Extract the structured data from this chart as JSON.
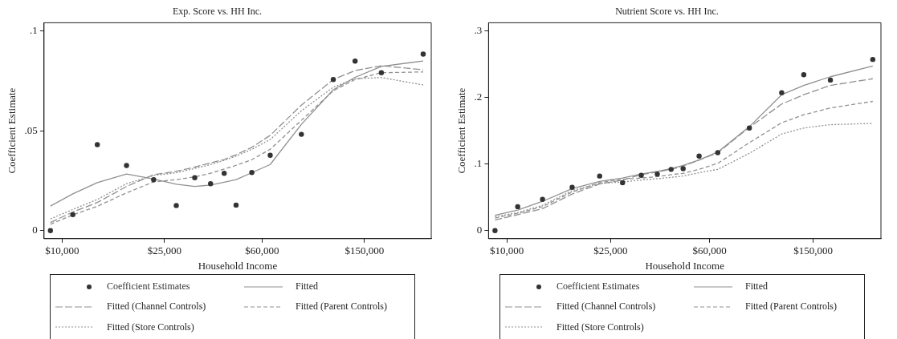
{
  "chart_data": [
    {
      "type": "scatter",
      "title": "Exp. Score vs. HH Inc.",
      "xlabel": "Household Income",
      "ylabel": "Coefficient Estimate",
      "log": "x",
      "grid": false,
      "legend": "bottom",
      "x": [
        9000,
        11000,
        13700,
        17800,
        22700,
        27800,
        32800,
        37800,
        42700,
        47500,
        54700,
        64500,
        85300,
        113500,
        138000,
        174600,
        254000
      ],
      "xlim": [
        8500,
        273000
      ],
      "xticks": [
        {
          "value": 10000,
          "label": "$10,000"
        },
        {
          "value": 25000,
          "label": "$25,000"
        },
        {
          "value": 60000,
          "label": "$60,000"
        },
        {
          "value": 150000,
          "label": "$150,000"
        }
      ],
      "ylim": [
        -0.004,
        0.104
      ],
      "yticks": [
        0,
        {
          "value": 0.05,
          "label": ".05"
        },
        {
          "value": 0.1,
          "label": ".1"
        }
      ],
      "series": [
        {
          "name": "Coefficient Estimates",
          "marker": "circle",
          "color": "#333333",
          "values": [
            0,
            0.008,
            0.043,
            0.0326,
            0.0255,
            0.0126,
            0.0265,
            0.0235,
            0.0287,
            0.0128,
            0.0291,
            0.0377,
            0.0482,
            0.0756,
            0.0848,
            0.079,
            0.0883
          ]
        },
        {
          "name": "Fitted",
          "type": "line",
          "marker": "none",
          "line_style": "solid",
          "color": "#909090",
          "values": [
            0.0123,
            0.0184,
            0.024,
            0.0283,
            0.0258,
            0.0232,
            0.0221,
            0.0228,
            0.0242,
            0.0255,
            0.029,
            0.0331,
            0.0532,
            0.0705,
            0.0767,
            0.0822,
            0.0849
          ]
        },
        {
          "name": "Fitted (Channel Controls)",
          "type": "line",
          "marker": "none",
          "line_style": "dashed",
          "color": "#909090",
          "values": [
            0.0041,
            0.0093,
            0.0141,
            0.0221,
            0.028,
            0.0297,
            0.0318,
            0.0339,
            0.0356,
            0.038,
            0.0417,
            0.0477,
            0.0628,
            0.0756,
            0.0801,
            0.0825,
            0.0805
          ]
        },
        {
          "name": "Fitted (Parent Controls)",
          "type": "line",
          "marker": "none",
          "line_style": "dashed",
          "color": "#909090",
          "values": [
            0.0032,
            0.0079,
            0.0122,
            0.0189,
            0.0244,
            0.0255,
            0.0269,
            0.0287,
            0.0308,
            0.0327,
            0.0355,
            0.0407,
            0.0552,
            0.07,
            0.0756,
            0.079,
            0.0794
          ]
        },
        {
          "name": "Fitted (Store Controls)",
          "type": "line",
          "marker": "none",
          "line_style": "dotted",
          "color": "#909090",
          "values": [
            0.0059,
            0.0106,
            0.0156,
            0.0235,
            0.0276,
            0.029,
            0.0311,
            0.0331,
            0.0352,
            0.0373,
            0.0407,
            0.0456,
            0.06,
            0.0718,
            0.076,
            0.0766,
            0.0729
          ]
        }
      ]
    },
    {
      "type": "scatter",
      "title": "Nutrient Score vs. HH Inc.",
      "xlabel": "Household Income",
      "ylabel": "Coefficient Estimate",
      "log": "x",
      "grid": false,
      "legend": "bottom",
      "x": [
        9000,
        11000,
        13700,
        17800,
        22700,
        27800,
        32800,
        37800,
        42700,
        47500,
        54700,
        64500,
        85300,
        113500,
        138000,
        174600,
        254000
      ],
      "xlim": [
        8500,
        273000
      ],
      "xticks": [
        {
          "value": 10000,
          "label": "$10,000"
        },
        {
          "value": 25000,
          "label": "$25,000"
        },
        {
          "value": 60000,
          "label": "$60,000"
        },
        {
          "value": 150000,
          "label": "$150,000"
        }
      ],
      "ylim": [
        -0.012,
        0.312
      ],
      "yticks": [
        0,
        {
          "value": 0.1,
          "label": ".1"
        },
        {
          "value": 0.2,
          "label": ".2"
        },
        {
          "value": 0.3,
          "label": ".3"
        }
      ],
      "series": [
        {
          "name": "Coefficient Estimates",
          "marker": "circle",
          "color": "#333333",
          "values": [
            0,
            0.036,
            0.047,
            0.065,
            0.082,
            0.072,
            0.083,
            0.085,
            0.092,
            0.093,
            0.112,
            0.117,
            0.154,
            0.207,
            0.234,
            0.226,
            0.257
          ]
        },
        {
          "name": "Fitted",
          "type": "line",
          "marker": "none",
          "line_style": "solid",
          "color": "#909090",
          "values": [
            0.023,
            0.031,
            0.044,
            0.063,
            0.074,
            0.079,
            0.085,
            0.089,
            0.093,
            0.098,
            0.106,
            0.118,
            0.156,
            0.204,
            0.218,
            0.231,
            0.247
          ]
        },
        {
          "name": "Fitted (Channel Controls)",
          "type": "line",
          "marker": "none",
          "line_style": "dashed",
          "color": "#909090",
          "values": [
            0.016,
            0.024,
            0.033,
            0.055,
            0.07,
            0.076,
            0.084,
            0.088,
            0.092,
            0.097,
            0.106,
            0.117,
            0.155,
            0.19,
            0.204,
            0.218,
            0.228
          ]
        },
        {
          "name": "Fitted (Parent Controls)",
          "type": "line",
          "marker": "none",
          "line_style": "dashed",
          "color": "#909090",
          "values": [
            0.019,
            0.026,
            0.036,
            0.058,
            0.072,
            0.077,
            0.079,
            0.081,
            0.084,
            0.086,
            0.092,
            0.101,
            0.132,
            0.162,
            0.174,
            0.184,
            0.194
          ]
        },
        {
          "name": "Fitted (Store Controls)",
          "type": "line",
          "marker": "none",
          "line_style": "dotted",
          "color": "#909090",
          "values": [
            0.021,
            0.027,
            0.038,
            0.06,
            0.071,
            0.073,
            0.076,
            0.078,
            0.08,
            0.082,
            0.087,
            0.092,
            0.116,
            0.145,
            0.154,
            0.159,
            0.161
          ]
        }
      ]
    }
  ]
}
